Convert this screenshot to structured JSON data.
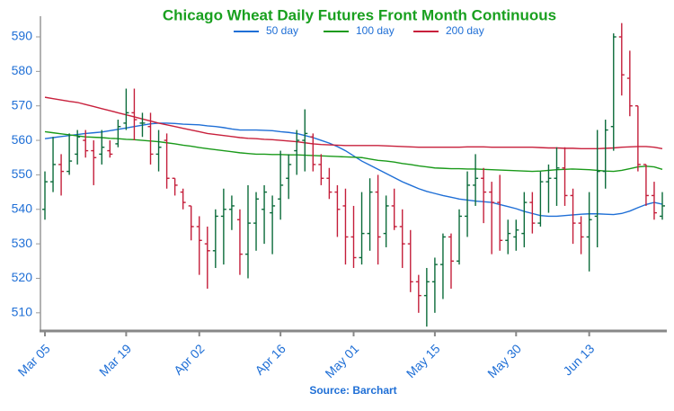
{
  "chart_data": {
    "type": "ohlc",
    "title": "Chicago Wheat Daily Futures Front Month Continuous",
    "source": "Source: Barchart",
    "categories": [
      "Mar 05",
      null,
      null,
      null,
      null,
      null,
      null,
      null,
      null,
      null,
      "Mar 19",
      null,
      null,
      null,
      null,
      null,
      null,
      null,
      null,
      "Apr 02",
      null,
      null,
      null,
      null,
      null,
      null,
      null,
      null,
      null,
      "Apr 16",
      null,
      null,
      null,
      null,
      null,
      null,
      null,
      null,
      "May 01",
      null,
      null,
      null,
      null,
      null,
      null,
      null,
      null,
      null,
      "May 15",
      null,
      null,
      null,
      null,
      null,
      null,
      null,
      null,
      null,
      "May 30",
      null,
      null,
      null,
      null,
      null,
      null,
      null,
      null,
      "Jun 13",
      null,
      null,
      null,
      null,
      null,
      null,
      null,
      null,
      null
    ],
    "open": [
      540,
      548,
      553,
      551,
      556,
      560,
      557,
      556,
      557,
      559,
      565,
      568,
      565,
      564,
      556,
      560,
      549,
      545,
      541,
      535,
      530,
      528,
      538,
      540,
      537,
      527,
      536,
      540,
      539,
      543,
      549,
      557,
      560,
      561,
      553,
      549,
      545,
      541,
      532,
      526,
      533,
      545,
      533,
      541,
      535,
      530,
      519,
      515,
      519,
      524,
      532,
      525,
      538,
      547,
      549,
      545,
      542,
      531,
      532,
      533,
      542,
      536,
      548,
      549,
      552,
      544,
      536,
      532,
      538,
      551,
      564,
      590,
      578,
      570,
      553,
      544,
      538
    ],
    "high": [
      551,
      561,
      556,
      562,
      563,
      563,
      560,
      563,
      560,
      566,
      575,
      575,
      568,
      568,
      563,
      562,
      549,
      546,
      541,
      538,
      535,
      540,
      546,
      544,
      540,
      547,
      545,
      547,
      544,
      557,
      556,
      563,
      569,
      562,
      556,
      552,
      547,
      546,
      541,
      545,
      549,
      550,
      544,
      546,
      540,
      534,
      521,
      523,
      526,
      533,
      533,
      540,
      551,
      556,
      552,
      548,
      550,
      537,
      537,
      545,
      545,
      551,
      553,
      558,
      558,
      546,
      538,
      545,
      563,
      566,
      591,
      594,
      586,
      570,
      553,
      548,
      545
    ],
    "low": [
      537,
      545,
      544,
      550,
      553,
      555,
      547,
      553,
      555,
      558,
      563,
      560,
      561,
      553,
      551,
      546,
      544,
      540,
      531,
      521,
      517,
      523,
      524,
      534,
      521,
      520,
      528,
      530,
      527,
      537,
      543,
      550,
      551,
      551,
      547,
      543,
      532,
      524,
      523,
      524,
      528,
      524,
      529,
      534,
      523,
      516,
      510,
      506,
      510,
      514,
      517,
      524,
      532,
      541,
      536,
      527,
      528,
      527,
      528,
      529,
      533,
      535,
      539,
      541,
      541,
      530,
      527,
      522,
      529,
      546,
      557,
      573,
      567,
      551,
      541,
      537,
      537
    ],
    "close": [
      548,
      553,
      551,
      554,
      561,
      557,
      555,
      558,
      556,
      564,
      568,
      566,
      565,
      556,
      558,
      549,
      547,
      542,
      535,
      531,
      528,
      538,
      540,
      541,
      527,
      536,
      543,
      545,
      541,
      547,
      553,
      560,
      562,
      553,
      549,
      545,
      540,
      532,
      526,
      533,
      545,
      532,
      541,
      535,
      530,
      519,
      515,
      519,
      524,
      532,
      525,
      538,
      547,
      549,
      545,
      542,
      531,
      533,
      534,
      542,
      536,
      548,
      549,
      552,
      544,
      536,
      532,
      537,
      551,
      563,
      590,
      579,
      570,
      553,
      544,
      539,
      541
    ],
    "up_color": "#0b6b3a",
    "down_color": "#c41e3a",
    "series": [
      {
        "name": "50 day",
        "color": "#1f6fd6",
        "values": [
          560.5,
          560.8,
          561.1,
          561.4,
          561.7,
          562,
          562.2,
          562.4,
          562.8,
          563.2,
          563.6,
          564,
          564.4,
          564.8,
          565,
          565,
          564.9,
          564.7,
          564.6,
          564.5,
          564.2,
          564,
          563.7,
          563.3,
          563,
          563,
          563,
          562.9,
          562.8,
          562.5,
          562.3,
          562,
          561.4,
          560.8,
          560,
          559.2,
          558.2,
          557,
          555.5,
          554,
          552.8,
          551.6,
          550.4,
          549.2,
          548,
          547,
          546,
          545.2,
          544.6,
          544,
          543.5,
          543,
          542.7,
          542.4,
          542.2,
          542,
          541.4,
          540.8,
          540.2,
          539.4,
          538.8,
          538.2,
          538,
          538,
          538.2,
          538.4,
          538.6,
          538.7,
          538.7,
          538.6,
          538.5,
          538.8,
          539.5,
          540.5,
          541.4,
          542,
          541.5
        ]
      },
      {
        "name": "100 day",
        "color": "#1a9a1a",
        "values": [
          562.5,
          562.2,
          561.9,
          561.6,
          561.3,
          561,
          560.9,
          560.8,
          560.6,
          560.5,
          560.3,
          560.2,
          560,
          559.8,
          559.6,
          559.3,
          559,
          558.6,
          558.3,
          557.9,
          557.6,
          557.3,
          557,
          556.7,
          556.4,
          556.2,
          556,
          556,
          555.9,
          555.9,
          555.8,
          555.8,
          555.7,
          555.6,
          555.5,
          555.4,
          555.3,
          555.2,
          555.1,
          555,
          554.6,
          554.2,
          554,
          553.7,
          553.3,
          553,
          552.6,
          552.3,
          552,
          551.9,
          551.8,
          551.8,
          551.7,
          551.7,
          551.6,
          551.5,
          551.4,
          551.3,
          551.2,
          551.1,
          551,
          551.1,
          551.3,
          551.5,
          551.6,
          551.7,
          551.6,
          551.5,
          551.3,
          551.1,
          551,
          551.3,
          551.8,
          552.3,
          552.5,
          552.3,
          551.6
        ]
      },
      {
        "name": "200 day",
        "color": "#c8203c",
        "values": [
          572.5,
          572.1,
          571.7,
          571.3,
          571,
          570.4,
          569.8,
          569.2,
          568.6,
          568,
          567.4,
          566.8,
          566.2,
          565.6,
          565,
          564.5,
          564,
          563.5,
          563,
          562.5,
          562,
          561.7,
          561.4,
          561.1,
          560.8,
          560.6,
          560.5,
          560.3,
          560.2,
          560,
          559.8,
          559.6,
          559.3,
          559,
          558.8,
          558.7,
          558.6,
          558.5,
          558.5,
          558.5,
          558.5,
          558.5,
          558.4,
          558.3,
          558.2,
          558.1,
          558,
          558,
          558,
          558,
          558,
          558,
          558.1,
          558.1,
          558.1,
          558,
          558,
          558,
          558,
          558,
          558,
          557.9,
          557.8,
          557.8,
          557.7,
          557.7,
          557.6,
          557.6,
          557.6,
          557.7,
          557.8,
          558,
          558.1,
          558.2,
          558.2,
          558,
          557.6
        ]
      }
    ],
    "ylim": [
      505,
      596
    ],
    "yticks": [
      510,
      520,
      530,
      540,
      550,
      560,
      570,
      580,
      590
    ]
  }
}
